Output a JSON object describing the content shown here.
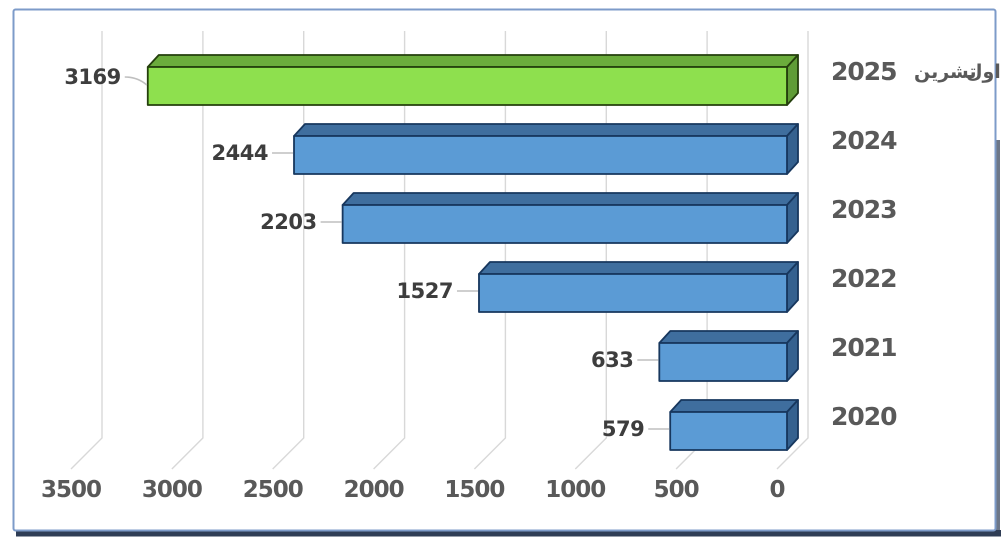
{
  "window": {
    "background": "#ffffff"
  },
  "frame": {
    "border_color": "#7D9BC9",
    "shadow_color": "#2F3D55",
    "fill": "#ffffff"
  },
  "chart_data": {
    "type": "bar",
    "orientation": "horizontal",
    "style": "3d",
    "title": "",
    "categories": [
      "تشرين اول 2025",
      "2024",
      "2023",
      "2022",
      "2021",
      "2020"
    ],
    "categories_display": [
      [
        "2025",
        "تشرين",
        "اول"
      ],
      [
        "2024"
      ],
      [
        "2023"
      ],
      [
        "2022"
      ],
      [
        "2021"
      ],
      [
        "2020"
      ]
    ],
    "values": [
      3169,
      2444,
      2203,
      1527,
      633,
      579
    ],
    "data_labels": [
      "3169",
      "2444",
      "2203",
      "1527",
      "633",
      "579"
    ],
    "highlight_index": 0,
    "axis": {
      "min": 0,
      "max": 3500,
      "reversed": true,
      "position": "bottom",
      "grid": true,
      "ticks": [
        3500,
        3000,
        2500,
        2000,
        1500,
        1000,
        500,
        0
      ],
      "tick_labels": [
        "3500",
        "3000",
        "2500",
        "2000",
        "1500",
        "1000",
        "500",
        "0"
      ]
    },
    "legend": "none",
    "colors": {
      "normal": {
        "front": "#5B9BD5",
        "top": "#3F6E9E",
        "side": "#35618F",
        "stroke": "#17375E"
      },
      "highlight": {
        "front": "#8EE04E",
        "top": "#6BAC3C",
        "side": "#5F9C36",
        "stroke": "#243F0C"
      },
      "grid": "#D8D8D8",
      "leader": "#BFBFBF",
      "value_label": "#3D3D3D",
      "tick_label": "#595959",
      "category_label": "#595959"
    }
  }
}
